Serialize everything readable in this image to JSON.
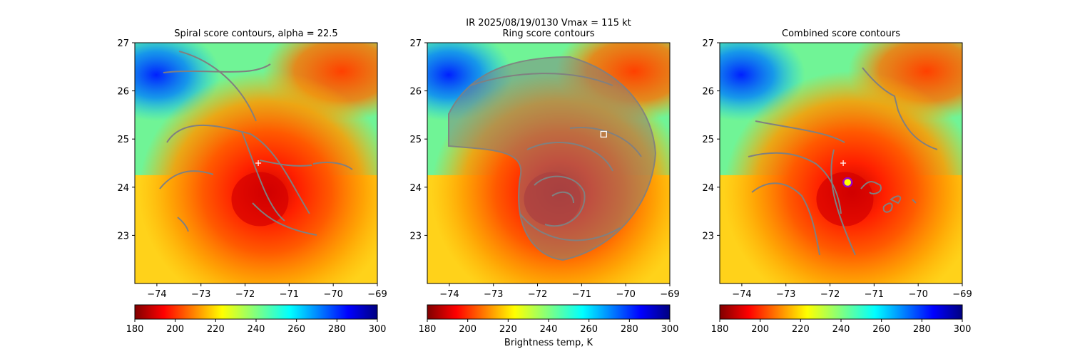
{
  "suptitle": "IR  2025/08/19/0130    Vmax = 115 kt",
  "colorbar_label": "Brightness temp, K",
  "colors": {
    "contour": "#808080",
    "marker_plus": "#ffffff",
    "ring_square": "#ffffff",
    "circle_outer": "#9900cc",
    "circle_inner": "#ffff00"
  },
  "chart_data": [
    {
      "type": "heatmap",
      "title": "Spiral score contours, alpha = 22.5",
      "xlim": [
        -74.5,
        -69
      ],
      "ylim": [
        22,
        27
      ],
      "xticks": [
        -74,
        -73,
        -72,
        -71,
        -70,
        -69
      ],
      "yticks": [
        23,
        24,
        25,
        26,
        27
      ],
      "colormap": "jet_reversed",
      "colorbar": {
        "range": [
          180,
          300
        ],
        "ticks": [
          180,
          200,
          220,
          240,
          260,
          280,
          300
        ],
        "reversed": true
      },
      "eye_center_estimate": {
        "lon": -71.5,
        "lat": 23.9
      },
      "markers": [
        {
          "symbol": "plus",
          "lon": -71.7,
          "lat": 24.5
        }
      ]
    },
    {
      "type": "heatmap",
      "title": "Ring score contours",
      "xlim": [
        -74.5,
        -69
      ],
      "ylim": [
        22,
        27
      ],
      "xticks": [
        -74,
        -73,
        -72,
        -71,
        -70,
        -69
      ],
      "yticks": [
        23,
        24,
        25,
        26,
        27
      ],
      "colormap": "jet_reversed",
      "colorbar": {
        "range": [
          180,
          300
        ],
        "ticks": [
          180,
          200,
          220,
          240,
          260,
          280,
          300
        ],
        "reversed": true
      },
      "eye_center_estimate": {
        "lon": -71.5,
        "lat": 23.9
      },
      "markers": [
        {
          "symbol": "square",
          "lon": -70.5,
          "lat": 25.1
        }
      ]
    },
    {
      "type": "heatmap",
      "title": "Combined score contours",
      "xlim": [
        -74.5,
        -69
      ],
      "ylim": [
        22,
        27
      ],
      "xticks": [
        -74,
        -73,
        -72,
        -71,
        -70,
        -69
      ],
      "yticks": [
        23,
        24,
        25,
        26,
        27
      ],
      "colormap": "jet_reversed",
      "colorbar": {
        "range": [
          180,
          300
        ],
        "ticks": [
          180,
          200,
          220,
          240,
          260,
          280,
          300
        ],
        "reversed": false
      },
      "eye_center_estimate": {
        "lon": -71.5,
        "lat": 23.9
      },
      "markers": [
        {
          "symbol": "plus",
          "lon": -71.7,
          "lat": 24.5
        },
        {
          "symbol": "circle",
          "lon": -71.6,
          "lat": 24.1
        }
      ]
    }
  ]
}
